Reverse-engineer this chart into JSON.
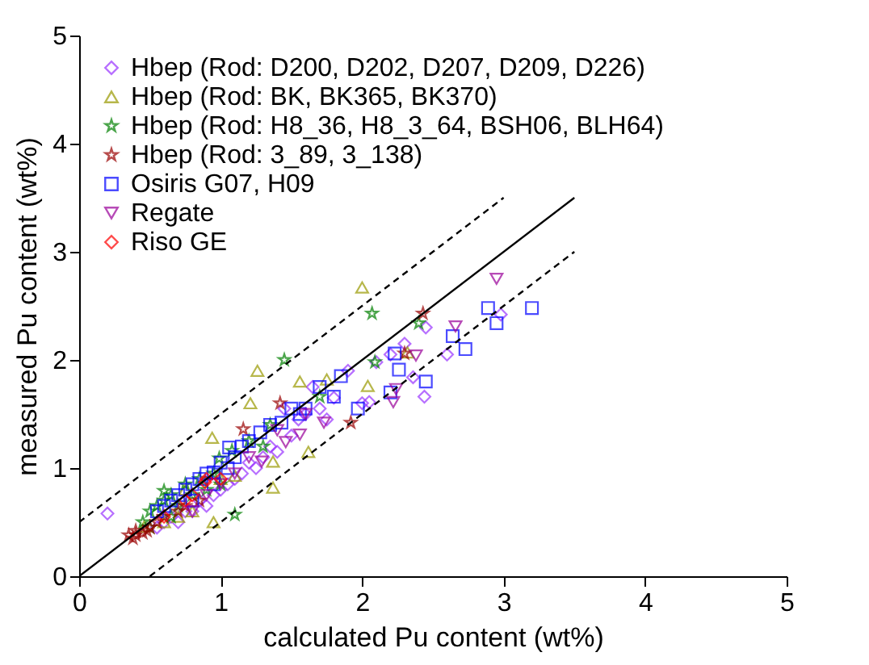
{
  "chart_data": {
    "type": "scatter",
    "xlabel": "calculated Pu content (wt%)",
    "ylabel": "measured Pu content (wt%)",
    "xlim": [
      0,
      5
    ],
    "ylim": [
      0,
      5
    ],
    "xticks": [
      0,
      1,
      2,
      3,
      4,
      5
    ],
    "yticks": [
      0,
      1,
      2,
      3,
      4,
      5
    ],
    "grid": false,
    "legend": "top left",
    "series": [
      {
        "name": "Hbep (Rod: D200, D202, D207, D209, D226)",
        "color": "#9933ff",
        "marker": "diamond",
        "x": [
          0.2,
          0.55,
          0.6,
          0.65,
          0.7,
          0.75,
          0.8,
          0.85,
          0.9,
          0.95,
          1.0,
          1.05,
          1.1,
          1.15,
          1.2,
          1.25,
          1.3,
          1.35,
          1.4,
          1.45,
          1.5,
          1.55,
          1.6,
          1.65,
          1.7,
          1.75,
          1.8,
          1.9,
          2.0,
          2.05,
          2.1,
          2.2,
          2.3,
          2.36,
          2.44,
          2.45,
          2.6,
          2.98
        ],
        "values": [
          0.58,
          0.45,
          0.5,
          0.55,
          0.5,
          0.6,
          0.6,
          0.7,
          0.65,
          0.75,
          0.8,
          0.85,
          0.9,
          0.95,
          1.05,
          1.0,
          1.1,
          1.2,
          1.15,
          1.55,
          1.3,
          1.45,
          1.5,
          1.75,
          1.55,
          1.45,
          1.65,
          1.9,
          1.6,
          1.61,
          1.98,
          2.05,
          2.15,
          1.84,
          1.66,
          2.3,
          2.05,
          2.42
        ]
      },
      {
        "name": "Hbep (Rod: BK, BK365, BK370)",
        "color": "#999900",
        "marker": "triangle",
        "x": [
          0.46,
          0.6,
          0.7,
          0.75,
          0.8,
          0.95,
          0.94,
          1.0,
          1.1,
          1.21,
          1.26,
          1.37,
          1.37,
          1.56,
          1.62,
          1.75,
          2.0,
          2.04,
          2.32
        ],
        "values": [
          0.46,
          0.5,
          0.55,
          0.8,
          0.6,
          0.5,
          1.28,
          0.9,
          0.93,
          1.6,
          1.9,
          1.06,
          0.82,
          1.8,
          1.15,
          1.82,
          2.67,
          1.76,
          2.07
        ]
      },
      {
        "name": "Hbep (Rod: H8_36, H8_3_64, BSH06, BLH64)",
        "color": "#008000",
        "marker": "star",
        "x": [
          0.45,
          0.5,
          0.5,
          0.55,
          0.6,
          0.6,
          0.65,
          0.65,
          0.7,
          0.75,
          0.8,
          0.85,
          0.9,
          0.95,
          1.0,
          0.99,
          1.08,
          1.1,
          1.2,
          1.3,
          1.35,
          1.45,
          1.7,
          2.07,
          2.09,
          2.4
        ],
        "values": [
          0.5,
          0.6,
          0.45,
          0.65,
          0.7,
          0.79,
          0.75,
          0.55,
          0.65,
          0.85,
          0.75,
          0.9,
          0.8,
          0.95,
          0.85,
          1.09,
          1.16,
          0.57,
          1.25,
          1.2,
          1.4,
          2.0,
          1.66,
          2.43,
          1.98,
          2.34
        ]
      },
      {
        "name": "Hbep (Rod: 3_89, 3_138)",
        "color": "#990000",
        "marker": "star",
        "x": [
          0.35,
          0.38,
          0.4,
          0.4,
          0.45,
          0.48,
          0.5,
          0.55,
          0.6,
          0.7,
          0.75,
          0.85,
          1.16,
          1.42,
          1.92,
          2.3,
          2.43
        ],
        "values": [
          0.38,
          0.35,
          0.38,
          0.42,
          0.4,
          0.42,
          0.45,
          0.5,
          0.55,
          0.6,
          0.65,
          0.7,
          1.36,
          1.6,
          1.42,
          2.06,
          2.43
        ]
      },
      {
        "name": "Osiris G07, H09",
        "color": "#0000ff",
        "marker": "square",
        "x": [
          0.55,
          0.6,
          0.65,
          0.7,
          0.75,
          0.8,
          0.8,
          0.85,
          0.9,
          0.95,
          0.95,
          1.0,
          1.05,
          1.06,
          1.1,
          1.15,
          1.2,
          1.28,
          1.35,
          1.43,
          1.5,
          1.56,
          1.6,
          1.7,
          1.8,
          1.85,
          1.97,
          2.2,
          2.23,
          2.26,
          2.45,
          2.64,
          2.73,
          2.89,
          2.95,
          3.2
        ],
        "values": [
          0.6,
          0.65,
          0.7,
          0.75,
          0.8,
          0.85,
          0.7,
          0.9,
          0.95,
          0.85,
          0.96,
          1.05,
          1.0,
          1.19,
          1.1,
          1.2,
          1.25,
          1.33,
          1.4,
          1.42,
          1.55,
          1.5,
          1.55,
          1.75,
          1.66,
          1.85,
          1.55,
          1.7,
          2.06,
          1.91,
          1.8,
          2.22,
          2.1,
          2.48,
          2.34,
          2.48
        ]
      },
      {
        "name": "Regate",
        "color": "#990099",
        "marker": "triangle-down",
        "x": [
          0.8,
          0.9,
          1.0,
          1.1,
          1.2,
          1.29,
          1.4,
          1.46,
          1.56,
          1.6,
          1.73,
          2.22,
          2.24,
          2.38,
          2.66,
          2.95
        ],
        "values": [
          0.6,
          0.75,
          0.85,
          0.95,
          1.1,
          1.06,
          1.35,
          1.24,
          1.31,
          1.5,
          1.42,
          1.61,
          1.73,
          2.04,
          2.31,
          2.75
        ]
      },
      {
        "name": "Riso GE",
        "color": "#ff0000",
        "marker": "diamond",
        "x": [
          0.6,
          0.75,
          0.8,
          0.89,
          0.9,
          1.0
        ],
        "values": [
          0.55,
          0.7,
          0.75,
          0.87,
          0.9,
          0.9
        ]
      },
      {
        "type": "line",
        "color": "#000000",
        "line_style": "solid",
        "x": [
          0,
          3.5
        ],
        "values": [
          0,
          3.5
        ]
      },
      {
        "type": "line",
        "color": "#000000",
        "line_style": "dashed",
        "x": [
          0,
          3
        ],
        "values": [
          0.5,
          3.5
        ]
      },
      {
        "type": "line",
        "color": "#000000",
        "line_style": "dashed",
        "x": [
          0.5,
          3.5
        ],
        "values": [
          0,
          3
        ]
      }
    ]
  }
}
